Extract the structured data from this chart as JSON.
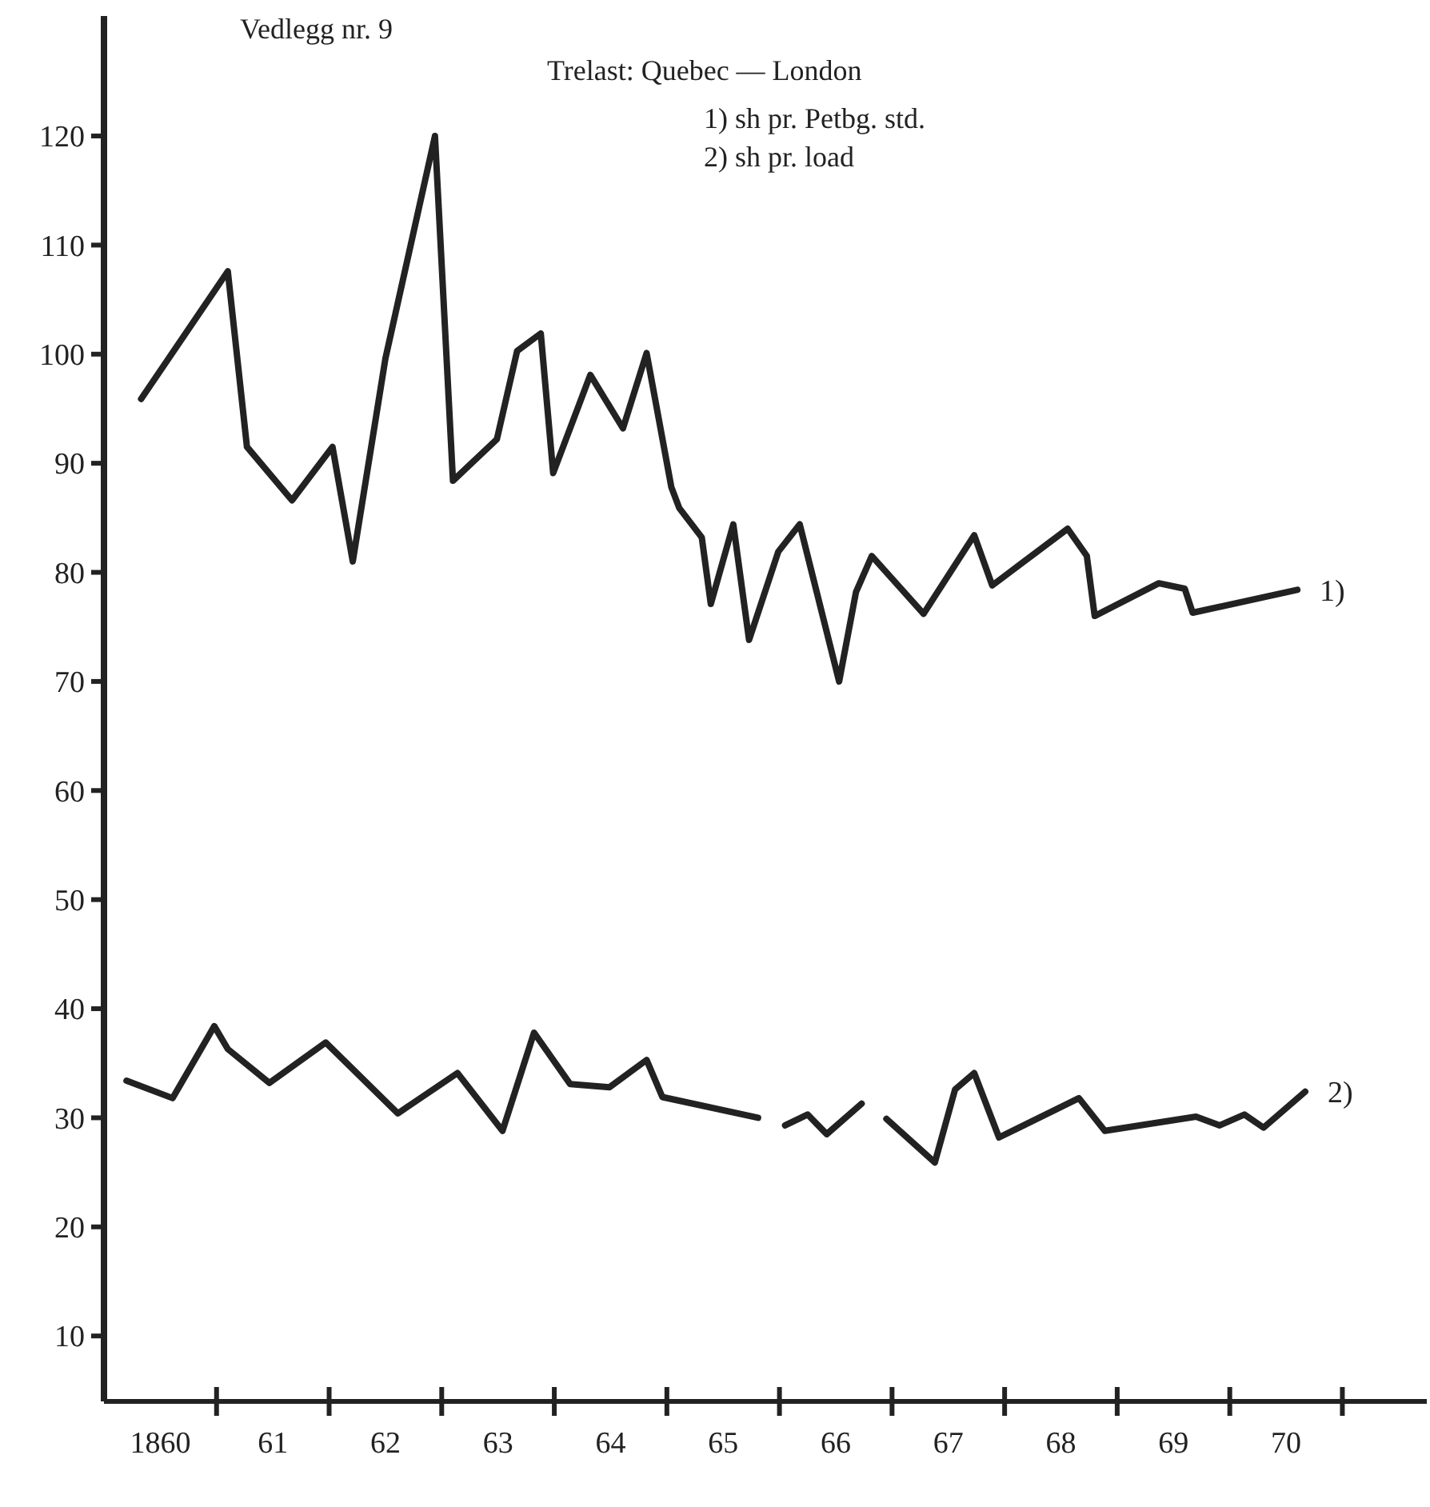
{
  "chart_data": {
    "type": "line",
    "title": "Vedlegg nr. 9",
    "subtitle": "Trelast: Quebec — London",
    "annotations": [
      "1) sh pr. Petbg. std.",
      "2) sh pr. load"
    ],
    "xlim": [
      1859.5,
      1871.25
    ],
    "ylim": [
      4,
      131
    ],
    "xticks": [
      1860,
      {
        "value": 1861,
        "label": "61"
      },
      {
        "value": 1862,
        "label": "62"
      },
      {
        "value": 1863,
        "label": "63"
      },
      {
        "value": 1864,
        "label": "64"
      },
      {
        "value": 1865,
        "label": "65"
      },
      {
        "value": 1866,
        "label": "66"
      },
      {
        "value": 1867,
        "label": "67"
      },
      {
        "value": 1868,
        "label": "68"
      },
      {
        "value": 1869,
        "label": "69"
      },
      {
        "value": 1870,
        "label": "70"
      }
    ],
    "yticks": [
      10,
      20,
      30,
      40,
      50,
      60,
      70,
      80,
      90,
      100,
      110,
      120
    ],
    "grid": false,
    "series": [
      {
        "name": "1)",
        "color": "#222222",
        "x": [
          1859.83,
          1860.6,
          1860.77,
          1861.17,
          1861.53,
          1861.71,
          1862,
          1862.44,
          1862.6,
          1862.99,
          1863.17,
          1863.38,
          1863.49,
          1863.82,
          1864.11,
          1864.32,
          1864.54,
          1864.61,
          1864.81,
          1864.89,
          1865.09,
          1865.23,
          1865.49,
          1865.68,
          1866.03,
          1866.18,
          1866.32,
          1866.78,
          1867.23,
          1867.39,
          1868.06,
          1868.23,
          1868.3,
          1868.87,
          1869.1,
          1869.17,
          1870.1
        ],
        "values": [
          95.9,
          107.6,
          91.5,
          86.6,
          91.5,
          81,
          99.6,
          120,
          88.4,
          92.2,
          100.3,
          101.9,
          89.1,
          98.1,
          93.2,
          100.1,
          87.8,
          85.9,
          83.2,
          77.1,
          84.4,
          73.8,
          81.9,
          84.4,
          70,
          78.2,
          81.5,
          76.2,
          83.4,
          78.8,
          84,
          81.5,
          76,
          79,
          78.5,
          76.3,
          78.4
        ]
      },
      {
        "name": "2)",
        "color": "#222222",
        "x": [
          1859.7,
          1860.11,
          1860.48,
          1860.6,
          1860.97,
          1861.47,
          1862.11,
          1862.64,
          1863.04,
          1863.32,
          1863.64,
          1863.99,
          1864.32,
          1864.46,
          1865.31,
          1865.43,
          1865.55,
          1865.75,
          1865.92,
          1866.23,
          1866.34,
          1866.45,
          1866.88,
          1867.06,
          1867.23,
          1867.45,
          1868.16,
          1868.39,
          1869.2,
          1869.41,
          1869.63,
          1869.8,
          1870.17
        ],
        "values": [
          33.4,
          31.8,
          38.4,
          36.3,
          33.2,
          36.9,
          30.4,
          34.1,
          28.8,
          37.8,
          33.1,
          32.8,
          35.3,
          31.9,
          30,
          null,
          29.3,
          30.3,
          28.5,
          31.3,
          null,
          29.9,
          25.9,
          32.6,
          34.1,
          28.2,
          31.8,
          28.8,
          30.1,
          29.3,
          30.3,
          29.1,
          32.4
        ]
      }
    ]
  }
}
